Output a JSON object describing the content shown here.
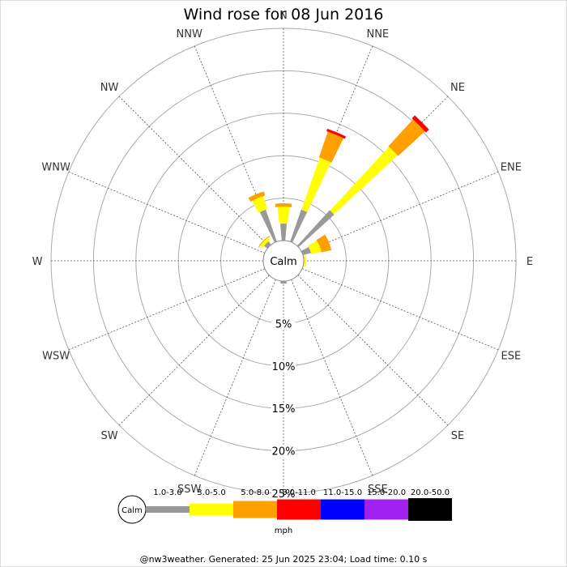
{
  "chart_data": {
    "type": "wind-rose",
    "title": "Wind rose for 08 Jun 2016",
    "center_label": "Calm",
    "directions": [
      "N",
      "NNE",
      "NE",
      "ENE",
      "E",
      "ESE",
      "SE",
      "SSE",
      "S",
      "SSW",
      "SW",
      "WSW",
      "W",
      "WNW",
      "NW",
      "NNW"
    ],
    "rings": [
      "5%",
      "10%",
      "15%",
      "20%",
      "25%"
    ],
    "ring_max": 25,
    "bins": [
      {
        "label": "1.0-3.0",
        "color": "#999999"
      },
      {
        "label": "3.0-5.0",
        "color": "#ffff00"
      },
      {
        "label": "5.0-8.0",
        "color": "#ff9f00"
      },
      {
        "label": "8.0-11.0",
        "color": "#ff0000"
      },
      {
        "label": "11.0-15.0",
        "color": "#0000ff"
      },
      {
        "label": "15.0-20.0",
        "color": "#a020f0"
      },
      {
        "label": "20.0-50.0",
        "color": "#000000"
      }
    ],
    "data": [
      {
        "dir": "N",
        "values": [
          2.0,
          2.0,
          0.4
        ]
      },
      {
        "dir": "NNE",
        "values": [
          4.0,
          6.5,
          3.2,
          0.3
        ]
      },
      {
        "dir": "NE",
        "values": [
          5.7,
          10.2,
          4.3,
          0.5
        ]
      },
      {
        "dir": "ENE",
        "values": [
          1.0,
          1.2,
          1.2
        ]
      },
      {
        "dir": "E",
        "values": [
          0.0,
          0.3
        ]
      },
      {
        "dir": "S",
        "values": [
          0.3
        ]
      },
      {
        "dir": "NW",
        "values": [
          0.5,
          0.4,
          0.1
        ]
      },
      {
        "dir": "NNW",
        "values": [
          4.0,
          1.6,
          0.5
        ]
      }
    ],
    "unit": "mph"
  },
  "footer": "@nw3weather. Generated: 25 Jun 2025 23:04; Load time: 0.10 s"
}
